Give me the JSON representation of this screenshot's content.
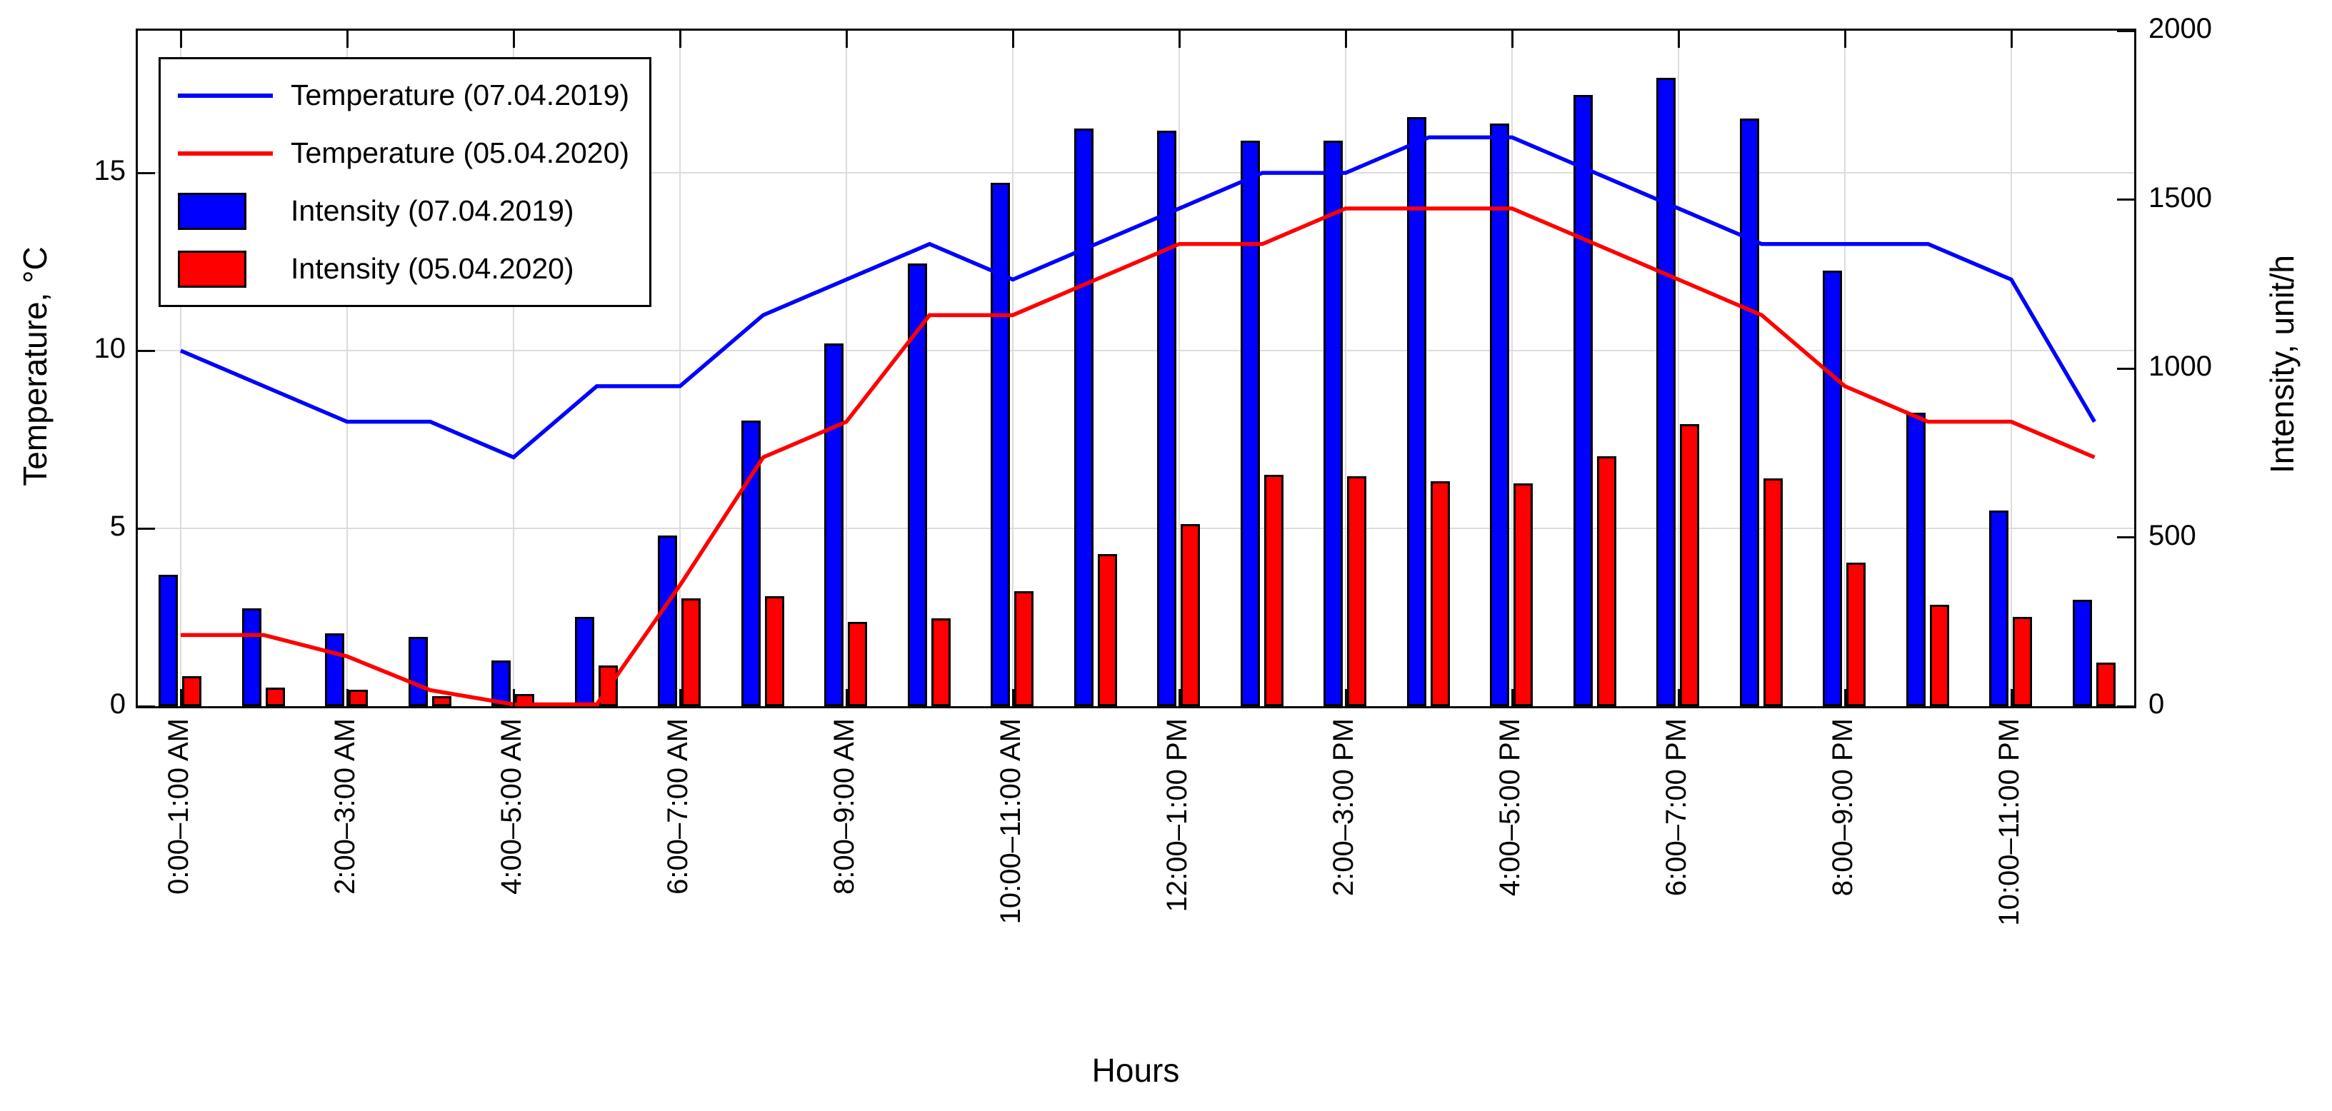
{
  "chart_data": {
    "type": "bar+line",
    "title": "",
    "xlabel": "Hours",
    "ylabel_left": "Temperature, °C",
    "ylabel_right": "Intensity, unit/h",
    "bins": 24,
    "x_tick_hours": [
      0,
      2,
      4,
      6,
      8,
      10,
      12,
      14,
      16,
      18,
      20,
      22
    ],
    "x_tick_labels": [
      "0:00–1:00 AM",
      "2:00–3:00 AM",
      "4:00–5:00 AM",
      "6:00–7:00 AM",
      "8:00–9:00 AM",
      "10:00–11:00 AM",
      "12:00–1:00 PM",
      "2:00–3:00 PM",
      "4:00–5:00 PM",
      "6:00–7:00 PM",
      "8:00–9:00 PM",
      "10:00–11:00 PM"
    ],
    "left_axis": {
      "min": 0,
      "max": 19,
      "ticks": [
        0,
        5,
        10,
        15
      ],
      "tick_labels": [
        "0",
        "5",
        "10",
        "15"
      ]
    },
    "right_axis": {
      "min": 0,
      "max": 2000,
      "ticks": [
        0,
        500,
        1000,
        1500,
        2000
      ],
      "tick_labels": [
        "0",
        "500",
        "1000",
        "1500",
        "2000"
      ]
    },
    "grid": true,
    "legend_position": "top-left",
    "series": [
      {
        "name": "Temperature (07.04.2019)",
        "type": "line",
        "axis": "left",
        "color": "#0000FF",
        "values": [
          10,
          9,
          8,
          8,
          7,
          9,
          9,
          11,
          12,
          13,
          12,
          13,
          14,
          15,
          15,
          16,
          16,
          15,
          14,
          13,
          13,
          13,
          12,
          8
        ]
      },
      {
        "name": "Temperature (05.04.2020)",
        "type": "line",
        "axis": "left",
        "color": "#FF0000",
        "values": [
          2,
          2,
          1.4,
          0.45,
          0.05,
          0.05,
          3.4,
          7,
          8,
          11,
          11,
          12,
          13,
          13,
          14,
          14,
          14,
          13,
          12,
          11,
          9,
          8,
          8,
          7
        ]
      },
      {
        "name": "Intensity (07.04.2019)",
        "type": "bar",
        "axis": "right",
        "color": "#0000FF",
        "values": [
          390,
          290,
          215,
          205,
          135,
          265,
          505,
          845,
          1075,
          1310,
          1550,
          1710,
          1705,
          1675,
          1675,
          1745,
          1725,
          1810,
          1860,
          1740,
          1290,
          870,
          580,
          315
        ]
      },
      {
        "name": "Intensity (05.04.2020)",
        "type": "bar",
        "axis": "right",
        "color": "#FF0000",
        "values": [
          88,
          55,
          48,
          30,
          35,
          120,
          320,
          325,
          250,
          260,
          340,
          450,
          540,
          685,
          680,
          665,
          660,
          740,
          835,
          675,
          425,
          300,
          265,
          130
        ]
      }
    ]
  }
}
